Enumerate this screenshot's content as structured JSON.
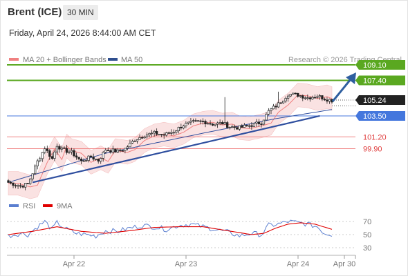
{
  "header": {
    "instrument": "Brent (ICE)",
    "timeframe": "30 MIN",
    "datetime": "Friday, April 24, 2026 8:44:00 AM CET"
  },
  "legend": {
    "items": [
      {
        "label": "MA 20 + Bollinger Bands",
        "color": "#f08080"
      },
      {
        "label": "MA 50",
        "color": "#2f4f8f"
      }
    ],
    "copyright": "Research © 2026 Trading Central"
  },
  "colors": {
    "resistance": "#5aa820",
    "support": "#4477dd",
    "pivot": "#f08080",
    "price_tag": "#222222",
    "trendline": "#2f4f9f",
    "up_candle": "#ffffff",
    "down_candle": "#222222",
    "band_fill": "#fadede",
    "rsi": "#5b7fd0",
    "rsi_ma": "#e00000"
  },
  "chart_data": {
    "type": "candlestick",
    "levels": [
      {
        "value": 109.1,
        "label": "109.10",
        "kind": "resistance"
      },
      {
        "value": 107.4,
        "label": "107.40",
        "kind": "resistance"
      },
      {
        "value": 105.24,
        "label": "105.24",
        "kind": "last_price"
      },
      {
        "value": 103.5,
        "label": "103.50",
        "kind": "support"
      },
      {
        "value": 101.2,
        "label": "101.20",
        "kind": "pivot"
      },
      {
        "value": 99.9,
        "label": "99.90",
        "kind": "pivot"
      }
    ],
    "x_ticks": [
      "Apr 22",
      "Apr 23",
      "Apr 24",
      "Apr 30"
    ],
    "close_anchors": [
      [
        0,
        96.2
      ],
      [
        5,
        95.8
      ],
      [
        8,
        96.0
      ],
      [
        12,
        98.5
      ],
      [
        15,
        100.0
      ],
      [
        18,
        98.8
      ],
      [
        20,
        100.3
      ],
      [
        22,
        99.8
      ],
      [
        26,
        99.5
      ],
      [
        30,
        98.5
      ],
      [
        34,
        99.0
      ],
      [
        37,
        98.6
      ],
      [
        40,
        99.8
      ],
      [
        45,
        99.6
      ],
      [
        48,
        99.9
      ],
      [
        52,
        100.9
      ],
      [
        56,
        101.4
      ],
      [
        60,
        101.6
      ],
      [
        64,
        101.4
      ],
      [
        68,
        101.8
      ],
      [
        72,
        102.5
      ],
      [
        76,
        102.8
      ],
      [
        80,
        102.9
      ],
      [
        84,
        102.6
      ],
      [
        88,
        102.7
      ],
      [
        91,
        102.3
      ],
      [
        95,
        102.2
      ],
      [
        100,
        102.5
      ],
      [
        104,
        102.8
      ],
      [
        107,
        104.0
      ],
      [
        111,
        104.8
      ],
      [
        115,
        105.9
      ],
      [
        119,
        105.8
      ],
      [
        123,
        105.5
      ],
      [
        127,
        105.7
      ],
      [
        130,
        105.4
      ],
      [
        133,
        105.2
      ]
    ],
    "bollinger_band_width": 1.3,
    "ma50_anchors": [
      [
        0,
        96.2
      ],
      [
        40,
        99.4
      ],
      [
        80,
        101.6
      ],
      [
        110,
        103.2
      ],
      [
        133,
        104.2
      ]
    ],
    "trendline": {
      "from": [
        10,
        96.2
      ],
      "to": [
        128,
        103.5
      ]
    },
    "rsi": {
      "legend": [
        {
          "label": "RSI",
          "color": "#5b7fd0"
        },
        {
          "label": "9MA",
          "color": "#e00000"
        }
      ],
      "y_ticks": [
        70,
        50,
        30
      ],
      "anchors": [
        [
          0,
          48
        ],
        [
          5,
          52
        ],
        [
          8,
          50
        ],
        [
          12,
          62
        ],
        [
          15,
          70
        ],
        [
          18,
          58
        ],
        [
          20,
          68
        ],
        [
          24,
          58
        ],
        [
          28,
          52
        ],
        [
          32,
          50
        ],
        [
          36,
          48
        ],
        [
          40,
          56
        ],
        [
          45,
          55
        ],
        [
          50,
          60
        ],
        [
          55,
          64
        ],
        [
          60,
          62
        ],
        [
          65,
          58
        ],
        [
          70,
          64
        ],
        [
          75,
          66
        ],
        [
          80,
          62
        ],
        [
          85,
          58
        ],
        [
          90,
          54
        ],
        [
          95,
          48
        ],
        [
          100,
          52
        ],
        [
          104,
          50
        ],
        [
          107,
          64
        ],
        [
          111,
          66
        ],
        [
          115,
          70
        ],
        [
          119,
          68
        ],
        [
          123,
          66
        ],
        [
          127,
          62
        ],
        [
          130,
          52
        ],
        [
          133,
          50
        ]
      ],
      "ma_anchors": [
        [
          0,
          50
        ],
        [
          10,
          55
        ],
        [
          20,
          62
        ],
        [
          30,
          55
        ],
        [
          40,
          52
        ],
        [
          50,
          56
        ],
        [
          60,
          61
        ],
        [
          70,
          62
        ],
        [
          80,
          62
        ],
        [
          90,
          56
        ],
        [
          100,
          50
        ],
        [
          105,
          52
        ],
        [
          110,
          60
        ],
        [
          115,
          66
        ],
        [
          120,
          68
        ],
        [
          126,
          66
        ],
        [
          133,
          58
        ]
      ]
    }
  }
}
